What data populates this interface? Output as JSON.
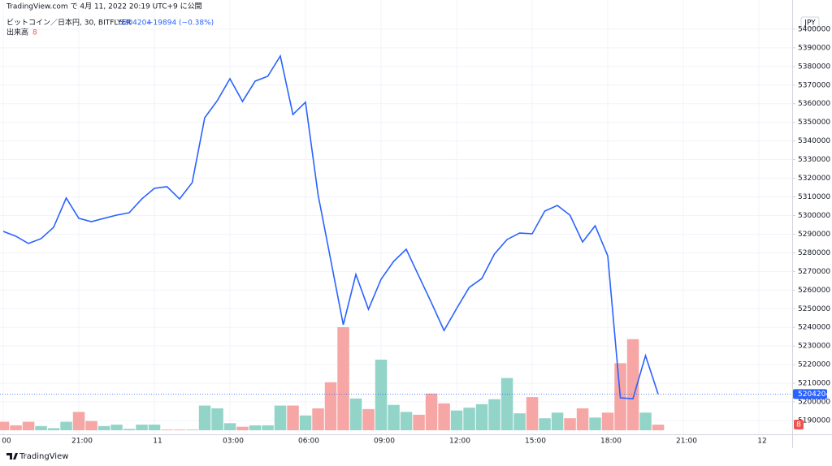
{
  "header": {
    "published": "TradingView.com で 4月 11, 2022 20:19 UTC+9 に公開"
  },
  "footer": {
    "brand": "TradingView"
  },
  "chart_data": {
    "type": "line",
    "change": "−19894 (−0.38%)",
    "currency": "JPY",
    "categories": [
      "00",
      null,
      null,
      null,
      null,
      null,
      "21:00",
      null,
      null,
      null,
      null,
      null,
      "11",
      null,
      null,
      null,
      null,
      null,
      "03:00",
      null,
      null,
      null,
      null,
      null,
      "06:00",
      null,
      null,
      null,
      null,
      null,
      "09:00",
      null,
      null,
      null,
      null,
      null,
      "12:00",
      null,
      null,
      null,
      null,
      null,
      "15:00",
      null,
      null,
      null,
      null,
      null,
      "18:00",
      null,
      null,
      null,
      null,
      null,
      "21:00",
      null,
      null,
      null,
      null,
      null,
      "12"
    ],
    "series": [
      {
        "name": "ビットコイン／日本円, 30, BITFLYER",
        "color": "#2962ff",
        "values": [
          5291500,
          5288900,
          5285000,
          5287600,
          5293700,
          5309400,
          5298500,
          5296700,
          5298500,
          5300200,
          5301500,
          5308900,
          5314600,
          5315500,
          5308900,
          5317600,
          5352500,
          5361700,
          5373400,
          5361200,
          5372100,
          5374700,
          5385600,
          5354200,
          5360800,
          5311100,
          5276300,
          5241400,
          5268400,
          5249700,
          5265800,
          5275400,
          5281900,
          5267500,
          5253200,
          5238300,
          5250100,
          5261400,
          5266200,
          5279300,
          5287100,
          5290600,
          5290200,
          5302400,
          5305400,
          5300200,
          5285800,
          5294500,
          5278400,
          5202200,
          5201700,
          5224800,
          5204204,
          null,
          null,
          null,
          null,
          null,
          null,
          null,
          null
        ]
      }
    ],
    "volume": {
      "name": "出来高",
      "values": [
        12,
        7,
        12,
        6,
        3,
        12,
        26,
        13,
        6,
        8,
        2,
        8,
        8,
        1,
        1,
        1,
        35,
        31,
        10,
        5,
        7,
        7,
        35,
        35,
        21,
        31,
        68,
        146,
        45,
        30,
        100,
        36,
        26,
        22,
        52,
        38,
        28,
        32,
        37,
        44,
        74,
        24,
        47,
        17,
        25,
        17,
        31,
        18,
        25,
        95,
        129,
        25,
        8,
        null,
        null,
        null,
        null,
        null,
        null,
        null,
        null
      ],
      "colors": [
        "#f6a6a4",
        "#f6a6a4",
        "#f6a6a4",
        "#93d4c9",
        "#93d4c9",
        "#93d4c9",
        "#f6a6a4",
        "#f6a6a4",
        "#93d4c9",
        "#93d4c9",
        "#93d4c9",
        "#93d4c9",
        "#93d4c9",
        "#f6a6a4",
        "#f6a6a4",
        "#93d4c9",
        "#93d4c9",
        "#93d4c9",
        "#93d4c9",
        "#f6a6a4",
        "#93d4c9",
        "#93d4c9",
        "#93d4c9",
        "#f6a6a4",
        "#93d4c9",
        "#f6a6a4",
        "#f6a6a4",
        "#f6a6a4",
        "#93d4c9",
        "#f6a6a4",
        "#93d4c9",
        "#93d4c9",
        "#93d4c9",
        "#f6a6a4",
        "#f6a6a4",
        "#f6a6a4",
        "#93d4c9",
        "#93d4c9",
        "#93d4c9",
        "#93d4c9",
        "#93d4c9",
        "#93d4c9",
        "#f6a6a4",
        "#93d4c9",
        "#93d4c9",
        "#f6a6a4",
        "#f6a6a4",
        "#93d4c9",
        "#f6a6a4",
        "#f6a6a4",
        "#f6a6a4",
        "#93d4c9",
        "#f6a6a4",
        null,
        null,
        null,
        null,
        null,
        null,
        null,
        null
      ]
    },
    "ylim": [
      5182600,
      5407800
    ],
    "yticks": [
      5190000,
      5200000,
      5210000,
      5220000,
      5230000,
      5240000,
      5250000,
      5260000,
      5270000,
      5280000,
      5290000,
      5300000,
      5310000,
      5320000,
      5330000,
      5340000,
      5350000,
      5360000,
      5370000,
      5380000,
      5390000,
      5400000
    ],
    "grid": true
  }
}
